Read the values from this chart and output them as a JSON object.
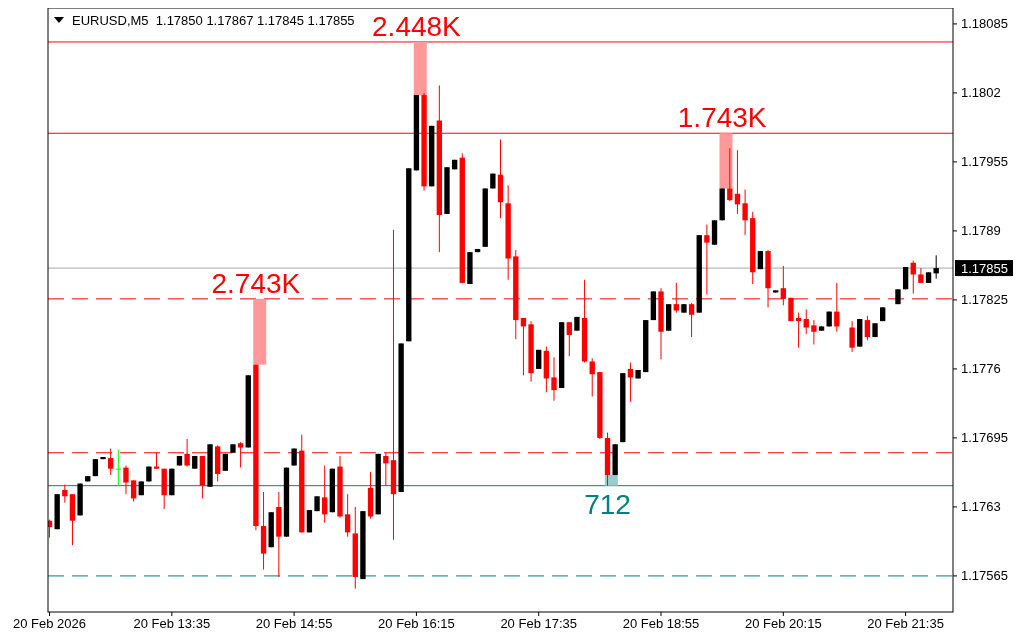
{
  "chart_data": {
    "type": "candlestick",
    "title": "EURUSD,M5  1.17850 1.17867 1.17845 1.17855",
    "x": [
      "2026-02-20T12:15",
      "2026-02-20T12:20",
      "2026-02-20T12:25",
      "2026-02-20T12:30",
      "2026-02-20T12:35",
      "2026-02-20T12:40",
      "2026-02-20T12:45",
      "2026-02-20T12:50",
      "2026-02-20T12:55",
      "2026-02-20T13:00",
      "2026-02-20T13:05",
      "2026-02-20T13:10",
      "2026-02-20T13:15",
      "2026-02-20T13:20",
      "2026-02-20T13:25",
      "2026-02-20T13:30",
      "2026-02-20T13:35",
      "2026-02-20T13:40",
      "2026-02-20T13:45",
      "2026-02-20T13:50",
      "2026-02-20T13:55",
      "2026-02-20T14:00",
      "2026-02-20T14:05",
      "2026-02-20T14:10",
      "2026-02-20T14:15",
      "2026-02-20T14:20",
      "2026-02-20T14:25",
      "2026-02-20T14:30",
      "2026-02-20T14:35",
      "2026-02-20T14:40",
      "2026-02-20T14:45",
      "2026-02-20T14:50",
      "2026-02-20T14:55",
      "2026-02-20T15:00",
      "2026-02-20T15:05",
      "2026-02-20T15:10",
      "2026-02-20T15:15",
      "2026-02-20T15:20",
      "2026-02-20T15:25",
      "2026-02-20T15:30",
      "2026-02-20T15:35",
      "2026-02-20T15:40",
      "2026-02-20T15:45",
      "2026-02-20T15:50",
      "2026-02-20T15:55",
      "2026-02-20T16:00",
      "2026-02-20T16:05",
      "2026-02-20T16:10",
      "2026-02-20T16:15",
      "2026-02-20T16:20",
      "2026-02-20T16:25",
      "2026-02-20T16:30",
      "2026-02-20T16:35",
      "2026-02-20T16:40",
      "2026-02-20T16:45",
      "2026-02-20T16:50",
      "2026-02-20T16:55",
      "2026-02-20T17:00",
      "2026-02-20T17:05",
      "2026-02-20T17:10",
      "2026-02-20T17:15",
      "2026-02-20T17:20",
      "2026-02-20T17:25",
      "2026-02-20T17:30",
      "2026-02-20T17:35",
      "2026-02-20T17:40",
      "2026-02-20T17:45",
      "2026-02-20T17:50",
      "2026-02-20T17:55",
      "2026-02-20T18:00",
      "2026-02-20T18:05",
      "2026-02-20T18:10",
      "2026-02-20T18:15",
      "2026-02-20T18:20",
      "2026-02-20T18:25",
      "2026-02-20T18:30",
      "2026-02-20T18:35",
      "2026-02-20T18:40",
      "2026-02-20T18:45",
      "2026-02-20T18:50",
      "2026-02-20T18:55",
      "2026-02-20T19:00",
      "2026-02-20T19:05",
      "2026-02-20T19:10",
      "2026-02-20T19:15",
      "2026-02-20T19:20",
      "2026-02-20T19:25",
      "2026-02-20T19:30",
      "2026-02-20T19:35",
      "2026-02-20T19:40",
      "2026-02-20T19:45",
      "2026-02-20T19:50",
      "2026-02-20T19:55",
      "2026-02-20T20:00",
      "2026-02-20T20:05",
      "2026-02-20T20:10",
      "2026-02-20T20:15",
      "2026-02-20T20:20",
      "2026-02-20T20:25",
      "2026-02-20T20:30",
      "2026-02-20T20:35",
      "2026-02-20T20:40",
      "2026-02-20T20:45",
      "2026-02-20T20:50",
      "2026-02-20T21:00",
      "2026-02-20T21:05",
      "2026-02-20T21:10",
      "2026-02-20T21:15",
      "2026-02-20T21:20",
      "2026-02-20T21:30",
      "2026-02-20T21:35",
      "2026-02-20T21:40",
      "2026-02-20T21:45",
      "2026-02-20T21:50",
      "2026-02-20T21:55"
    ],
    "ohlc": [
      [
        1.17617,
        1.17618,
        1.17601,
        1.17611
      ],
      [
        1.17609,
        1.17642,
        1.17609,
        1.17642
      ],
      [
        1.17646,
        1.17651,
        1.17634,
        1.1764
      ],
      [
        1.17642,
        1.17642,
        1.17594,
        1.17617
      ],
      [
        1.17622,
        1.17652,
        1.17622,
        1.17652
      ],
      [
        1.17654,
        1.17659,
        1.17654,
        1.17659
      ],
      [
        1.17659,
        1.17675,
        1.17659,
        1.17675
      ],
      [
        1.17675,
        1.17677,
        1.17675,
        1.17677
      ],
      [
        1.17676,
        1.17685,
        1.1766,
        1.17666
      ],
      [
        1.17666,
        1.17684,
        1.1765,
        1.17666
      ],
      [
        1.17667,
        1.17669,
        1.17642,
        1.17653
      ],
      [
        1.17655,
        1.17655,
        1.17635,
        1.17638
      ],
      [
        1.17641,
        1.17654,
        1.17641,
        1.17654
      ],
      [
        1.17654,
        1.17668,
        1.17654,
        1.17668
      ],
      [
        1.17668,
        1.17681,
        1.17666,
        1.17666
      ],
      [
        1.17666,
        1.17666,
        1.17628,
        1.17641
      ],
      [
        1.17641,
        1.17666,
        1.17641,
        1.17666
      ],
      [
        1.17669,
        1.17678,
        1.17669,
        1.17678
      ],
      [
        1.1768,
        1.17694,
        1.17668,
        1.17669
      ],
      [
        1.17666,
        1.17678,
        1.17666,
        1.17678
      ],
      [
        1.17678,
        1.17678,
        1.17638,
        1.1765
      ],
      [
        1.17649,
        1.17689,
        1.17649,
        1.17689
      ],
      [
        1.17687,
        1.17688,
        1.17654,
        1.17661
      ],
      [
        1.17664,
        1.1768,
        1.17664,
        1.1768
      ],
      [
        1.17681,
        1.17689,
        1.17681,
        1.17689
      ],
      [
        1.1769,
        1.17691,
        1.17667,
        1.17686
      ],
      [
        1.17686,
        1.17754,
        1.17686,
        1.17754
      ],
      [
        1.17764,
        1.17764,
        1.17608,
        1.17612
      ],
      [
        1.17612,
        1.17644,
        1.17571,
        1.17586
      ],
      [
        1.17592,
        1.17625,
        1.17592,
        1.17625
      ],
      [
        1.1763,
        1.17644,
        1.17564,
        1.17602
      ],
      [
        1.17602,
        1.17667,
        1.17602,
        1.17667
      ],
      [
        1.17669,
        1.17685,
        1.17669,
        1.17685
      ],
      [
        1.17683,
        1.17698,
        1.17606,
        1.17606
      ],
      [
        1.17606,
        1.17627,
        1.17606,
        1.17627
      ],
      [
        1.17626,
        1.1764,
        1.17626,
        1.1764
      ],
      [
        1.17639,
        1.17669,
        1.17615,
        1.17623
      ],
      [
        1.17625,
        1.17666,
        1.17625,
        1.17666
      ],
      [
        1.17668,
        1.17678,
        1.1762,
        1.17621
      ],
      [
        1.17623,
        1.17642,
        1.17602,
        1.17606
      ],
      [
        1.17605,
        1.1763,
        1.17553,
        1.17564
      ],
      [
        1.17562,
        1.17626,
        1.17562,
        1.17626
      ],
      [
        1.17648,
        1.17663,
        1.17619,
        1.17621
      ],
      [
        1.17623,
        1.1768,
        1.17623,
        1.1768
      ],
      [
        1.17678,
        1.17681,
        1.1765,
        1.17671
      ],
      [
        1.17674,
        1.17891,
        1.17599,
        1.17642
      ],
      [
        1.17644,
        1.17784,
        1.17644,
        1.17784
      ],
      [
        1.17786,
        1.17949,
        1.17786,
        1.17949
      ],
      [
        1.17947,
        1.18018,
        1.17947,
        1.18018
      ],
      [
        1.18018,
        1.1802,
        1.17928,
        1.17932
      ],
      [
        1.17932,
        1.17989,
        1.17932,
        1.17989
      ],
      [
        1.17994,
        1.18027,
        1.1787,
        1.17905
      ],
      [
        1.17906,
        1.1795,
        1.17906,
        1.1795
      ],
      [
        1.17948,
        1.17957,
        1.17948,
        1.17957
      ],
      [
        1.17959,
        1.17963,
        1.17841,
        1.17841
      ],
      [
        1.1784,
        1.1787,
        1.1784,
        1.1787
      ],
      [
        1.1787,
        1.17873,
        1.1787,
        1.17873
      ],
      [
        1.17875,
        1.1793,
        1.17875,
        1.1793
      ],
      [
        1.1793,
        1.17944,
        1.1793,
        1.17944
      ],
      [
        1.17943,
        1.17976,
        1.17902,
        1.17917
      ],
      [
        1.17916,
        1.17933,
        1.17844,
        1.17864
      ],
      [
        1.17866,
        1.17872,
        1.17788,
        1.17806
      ],
      [
        1.17808,
        1.17808,
        1.17754,
        1.178
      ],
      [
        1.17802,
        1.17805,
        1.17748,
        1.17756
      ],
      [
        1.1776,
        1.17778,
        1.1776,
        1.17778
      ],
      [
        1.17777,
        1.17781,
        1.17738,
        1.17751
      ],
      [
        1.17752,
        1.17771,
        1.1773,
        1.1774
      ],
      [
        1.17742,
        1.17804,
        1.17742,
        1.17804
      ],
      [
        1.17804,
        1.17804,
        1.17772,
        1.17792
      ],
      [
        1.17796,
        1.17809,
        1.17796,
        1.17809
      ],
      [
        1.17808,
        1.17844,
        1.17766,
        1.17767
      ],
      [
        1.17767,
        1.1777,
        1.17734,
        1.17755
      ],
      [
        1.17757,
        1.17757,
        1.17694,
        1.17695
      ],
      [
        1.17695,
        1.177,
        1.1765,
        1.1766
      ],
      [
        1.1766,
        1.17689,
        1.1766,
        1.17689
      ],
      [
        1.17691,
        1.17756,
        1.17691,
        1.17756
      ],
      [
        1.1776,
        1.17766,
        1.17729,
        1.17752
      ],
      [
        1.17751,
        1.17759,
        1.17751,
        1.17759
      ],
      [
        1.17757,
        1.17806,
        1.17757,
        1.17806
      ],
      [
        1.17806,
        1.17833,
        1.17806,
        1.17833
      ],
      [
        1.17833,
        1.17836,
        1.17769,
        1.17795
      ],
      [
        1.17796,
        1.17821,
        1.17796,
        1.17821
      ],
      [
        1.17821,
        1.17841,
        1.17813,
        1.17815
      ],
      [
        1.17813,
        1.17821,
        1.17813,
        1.17821
      ],
      [
        1.17821,
        1.17822,
        1.1779,
        1.17811
      ],
      [
        1.17813,
        1.17886,
        1.17813,
        1.17886
      ],
      [
        1.17886,
        1.17896,
        1.1783,
        1.17879
      ],
      [
        1.17877,
        1.179,
        1.17877,
        1.179
      ],
      [
        1.179,
        1.1793,
        1.179,
        1.1793
      ],
      [
        1.1793,
        1.17968,
        1.17918,
        1.17919
      ],
      [
        1.17925,
        1.17966,
        1.17906,
        1.17915
      ],
      [
        1.17916,
        1.17929,
        1.17886,
        1.179
      ],
      [
        1.17902,
        1.17908,
        1.1784,
        1.17851
      ],
      [
        1.17854,
        1.17871,
        1.17854,
        1.17871
      ],
      [
        1.17871,
        1.17872,
        1.17818,
        1.17836
      ],
      [
        1.17832,
        1.17834,
        1.17832,
        1.17834
      ],
      [
        1.17836,
        1.17857,
        1.1782,
        1.17826
      ],
      [
        1.17827,
        1.17827,
        1.17805,
        1.17805
      ],
      [
        1.17808,
        1.17813,
        1.1778,
        1.17805
      ],
      [
        1.17807,
        1.17816,
        1.17793,
        1.17799
      ],
      [
        1.17801,
        1.17806,
        1.17783,
        1.17795
      ],
      [
        1.17796,
        1.178,
        1.17796,
        1.178
      ],
      [
        1.178,
        1.17814,
        1.178,
        1.17814
      ],
      [
        1.17814,
        1.17841,
        1.17795,
        1.178
      ],
      [
        1.17799,
        1.17805,
        1.17776,
        1.1778
      ],
      [
        1.17781,
        1.17807,
        1.17781,
        1.17807
      ],
      [
        1.17806,
        1.1781,
        1.17787,
        1.1779
      ],
      [
        1.1779,
        1.17803,
        1.1779,
        1.17803
      ],
      [
        1.17805,
        1.17818,
        1.17805,
        1.17818
      ],
      [
        1.17821,
        1.17835,
        1.17821,
        1.17835
      ],
      [
        1.17835,
        1.17856,
        1.17835,
        1.17856
      ],
      [
        1.1786,
        1.17862,
        1.17831,
        1.17849
      ],
      [
        1.17849,
        1.17855,
        1.17841,
        1.17841
      ],
      [
        1.17841,
        1.17851,
        1.17841,
        1.17851
      ],
      [
        1.1785,
        1.17867,
        1.17845,
        1.17855
      ]
    ],
    "xlim": [
      "2026-02-20T12:14",
      "2026-02-20T22:06"
    ],
    "xticks": [
      {
        "value": "2026-02-20T12:15",
        "label": "20 Feb 2026"
      },
      {
        "value": "2026-02-20T13:35",
        "label": "20 Feb 13:35"
      },
      {
        "value": "2026-02-20T14:55",
        "label": "20 Feb 14:55"
      },
      {
        "value": "2026-02-20T16:15",
        "label": "20 Feb 16:15"
      },
      {
        "value": "2026-02-20T17:35",
        "label": "20 Feb 17:35"
      },
      {
        "value": "2026-02-20T18:55",
        "label": "20 Feb 18:55"
      },
      {
        "value": "2026-02-20T20:15",
        "label": "20 Feb 20:15"
      },
      {
        "value": "2026-02-20T21:35",
        "label": "20 Feb 21:35"
      }
    ],
    "ylim": [
      1.17531,
      1.181
    ],
    "yticks": [
      1.17565,
      1.1763,
      1.17695,
      1.1776,
      1.17825,
      1.1789,
      1.17955,
      1.1802,
      1.18085
    ],
    "annotations": [
      {
        "text": "2.743K",
        "x": "2026-02-20T14:30",
        "y": 1.17826
      },
      {
        "text": "2.448K",
        "x": "2026-02-20T16:15",
        "y": 1.18068
      },
      {
        "text": "712",
        "x": "2026-02-20T18:20",
        "y": 1.1765
      },
      {
        "text": "1.743K",
        "x": "2026-02-20T19:35",
        "y": 1.17982
      }
    ],
    "ref_lines": [
      {
        "axis": "y",
        "value": 1.18068,
        "color": "#ff0000",
        "line_style": "solid"
      },
      {
        "axis": "y",
        "value": 1.17982,
        "color": "#ff0000",
        "line_style": "solid"
      },
      {
        "axis": "y",
        "value": 1.1765,
        "color": "#008080",
        "line_style": "solid"
      },
      {
        "axis": "y",
        "value": 1.17826,
        "color": "#ff0000",
        "line_style": "dashed"
      },
      {
        "axis": "y",
        "value": 1.17681,
        "color": "#ff0000",
        "line_style": "dashed"
      },
      {
        "axis": "y",
        "value": 1.17565,
        "color": "#008080",
        "line_style": "dashed"
      },
      {
        "axis": "y",
        "value": 1.17855,
        "label": "1.17855",
        "color": "#000000"
      }
    ],
    "grid": false
  }
}
